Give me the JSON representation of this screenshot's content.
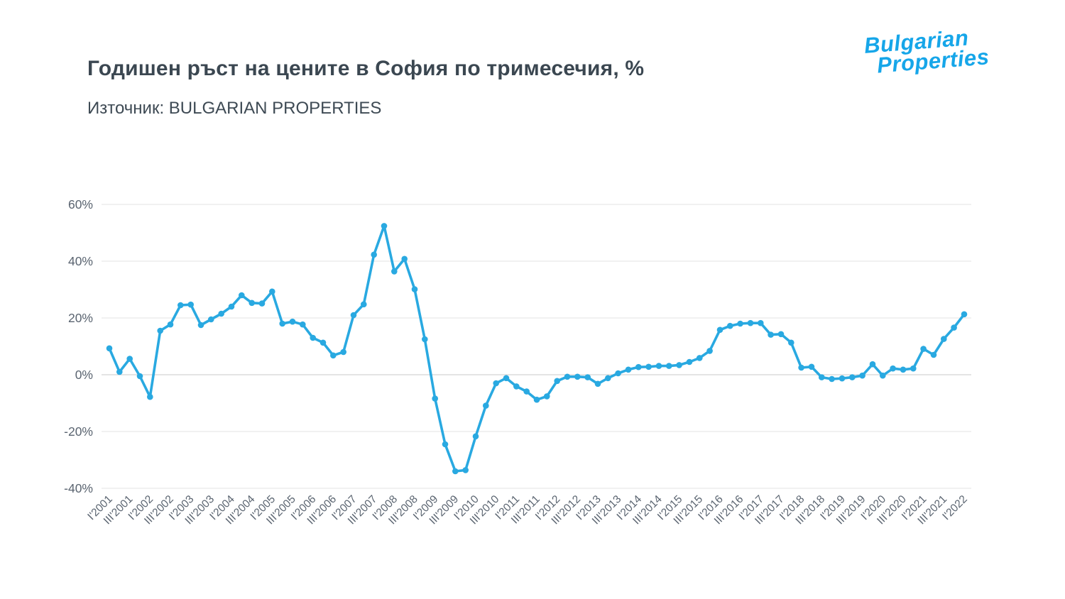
{
  "header": {
    "title": "Годишен ръст на цените в София по тримесечия, %",
    "source_line": "Източник: BULGARIAN PROPERTIES"
  },
  "logo": {
    "line1": "Bulgarian",
    "line2": "Properties",
    "color": "#16a6e9"
  },
  "chart_data": {
    "type": "line",
    "title": "Годишен ръст на цените в София по тримесечия, %",
    "source": "Източник: BULGARIAN PROPERTIES",
    "grid": true,
    "legend": "none",
    "line_color": "#29a9e1",
    "point_color": "#29a9e1",
    "grid_color": "#e3e3e3",
    "zero_line_color": "#c9c9c9",
    "tick_label_color": "#5a6470",
    "ylim": [
      -45,
      65
    ],
    "y_ticks": [
      60,
      40,
      20,
      0,
      -20,
      -40
    ],
    "y_tick_labels": [
      "60%",
      "40%",
      "20%",
      "0%",
      "-20%",
      "-40%"
    ],
    "x_tick_labels": [
      "I'2001",
      "III'2001",
      "I'2002",
      "III'2002",
      "I'2003",
      "III'2003",
      "I'2004",
      "III'2004",
      "I'2005",
      "III'2005",
      "I'2006",
      "III'2006",
      "I'2007",
      "III'2007",
      "I'2008",
      "III'2008",
      "I'2009",
      "III'2009",
      "I'2010",
      "III'2010",
      "I'2011",
      "III'2011",
      "I'2012",
      "III'2012",
      "I'2013",
      "III'2013",
      "I'2014",
      "III'2014",
      "I'2015",
      "III'2015",
      "I'2016",
      "III'2016",
      "I'2017",
      "III'2017",
      "I'2018",
      "III'2018",
      "I'2019",
      "III'2019",
      "I'2020",
      "III'2020",
      "I'2021",
      "III'2021",
      "I'2022"
    ],
    "x_tick_every_n_points": 2,
    "values": [
      9.3,
      1.0,
      5.6,
      -0.5,
      -7.8,
      15.5,
      17.7,
      24.5,
      24.7,
      17.5,
      19.5,
      21.5,
      24.0,
      28.0,
      25.3,
      25.1,
      29.3,
      18.0,
      18.7,
      17.7,
      13.0,
      11.3,
      6.8,
      8.0,
      21.0,
      24.8,
      42.3,
      52.4,
      36.4,
      40.8,
      30.1,
      12.5,
      -8.4,
      -24.5,
      -34.0,
      -33.6,
      -21.7,
      -10.9,
      -3.0,
      -1.2,
      -4.1,
      -5.9,
      -8.8,
      -7.6,
      -2.2,
      -0.7,
      -0.7,
      -0.9,
      -3.2,
      -1.2,
      0.5,
      1.8,
      2.7,
      2.8,
      3.1,
      3.1,
      3.4,
      4.5,
      5.9,
      8.4,
      15.8,
      17.2,
      18.0,
      18.2,
      18.2,
      14.1,
      14.3,
      11.3,
      2.5,
      2.8,
      -0.9,
      -1.5,
      -1.3,
      -0.9,
      -0.3,
      3.7,
      -0.3,
      2.2,
      1.8,
      2.2,
      9.1,
      7.0,
      12.6,
      16.6,
      21.3
    ]
  }
}
